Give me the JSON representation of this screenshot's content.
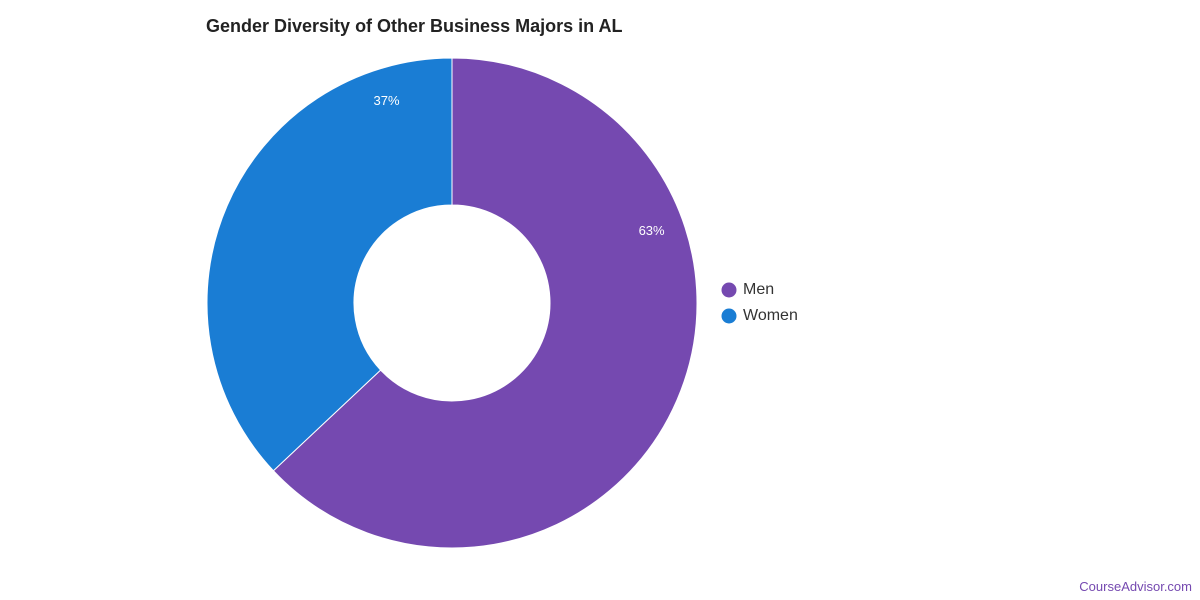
{
  "chart_data": {
    "type": "pie",
    "title": "Gender Diversity of Other Business Majors in AL",
    "donut": true,
    "slices": [
      {
        "label": "Men",
        "value": 63,
        "display": "63%",
        "color": "#7549B0"
      },
      {
        "label": "Women",
        "value": 37,
        "display": "37%",
        "color": "#1A7DD4"
      }
    ],
    "legend_position": "right"
  },
  "footer": {
    "source": "CourseAdvisor.com",
    "source_color": "#7549B0"
  }
}
